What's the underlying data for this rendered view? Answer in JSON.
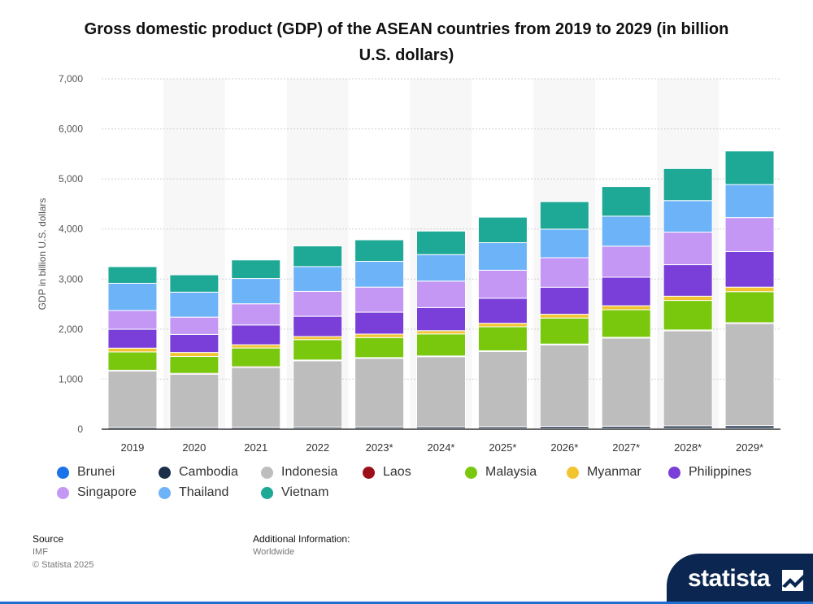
{
  "title": "Gross domestic product (GDP) of the ASEAN countries from 2019 to 2029 (in billion U.S. dollars)",
  "source_label": "Source",
  "source_lines": [
    "IMF",
    "© Statista 2025"
  ],
  "addinfo_label": "Additional Information:",
  "addinfo_value": "Worldwide",
  "brand": "statista",
  "chart_data": {
    "type": "bar",
    "stacked": true,
    "categories": [
      "2019",
      "2020",
      "2021",
      "2022",
      "2023*",
      "2024*",
      "2025*",
      "2026*",
      "2027*",
      "2028*",
      "2029*"
    ],
    "ylabel": "GDP in billion U.S. dollars",
    "ylim": [
      0,
      7000
    ],
    "yticks": [
      0,
      1000,
      2000,
      3000,
      4000,
      5000,
      6000,
      7000
    ],
    "ytick_labels": [
      "0",
      "1,000",
      "2,000",
      "3,000",
      "4,000",
      "5,000",
      "6,000",
      "7,000"
    ],
    "grid": true,
    "legend_position": "bottom",
    "series": [
      {
        "name": "Brunei",
        "color": "#1a73e8",
        "values": [
          13,
          12,
          14,
          17,
          15,
          15,
          16,
          17,
          18,
          19,
          20
        ]
      },
      {
        "name": "Cambodia",
        "color": "#1c2f4a",
        "values": [
          27,
          26,
          27,
          30,
          32,
          34,
          36,
          39,
          42,
          46,
          50
        ]
      },
      {
        "name": "Indonesia",
        "color": "#bdbdbd",
        "values": [
          1120,
          1060,
          1190,
          1320,
          1370,
          1400,
          1500,
          1630,
          1760,
          1900,
          2040
        ]
      },
      {
        "name": "Laos",
        "color": "#9b0f1a",
        "values": [
          19,
          19,
          19,
          16,
          14,
          15,
          15,
          16,
          17,
          18,
          19
        ]
      },
      {
        "name": "Malaysia",
        "color": "#79c80d",
        "values": [
          365,
          337,
          373,
          407,
          400,
          440,
          480,
          520,
          550,
          590,
          620
        ]
      },
      {
        "name": "Myanmar",
        "color": "#f2c530",
        "values": [
          76,
          79,
          65,
          62,
          70,
          65,
          70,
          75,
          80,
          85,
          90
        ]
      },
      {
        "name": "Philippines",
        "color": "#7a3fd8",
        "values": [
          377,
          361,
          394,
          404,
          437,
          460,
          500,
          540,
          570,
          630,
          710
        ]
      },
      {
        "name": "Singapore",
        "color": "#c497f5",
        "values": [
          375,
          345,
          424,
          498,
          501,
          530,
          560,
          590,
          620,
          650,
          680
        ]
      },
      {
        "name": "Thailand",
        "color": "#6db3f8",
        "values": [
          544,
          500,
          506,
          495,
          515,
          530,
          550,
          570,
          600,
          630,
          660
        ]
      },
      {
        "name": "Vietnam",
        "color": "#1ea896",
        "values": [
          332,
          346,
          370,
          413,
          430,
          470,
          510,
          550,
          590,
          640,
          670
        ]
      }
    ]
  }
}
